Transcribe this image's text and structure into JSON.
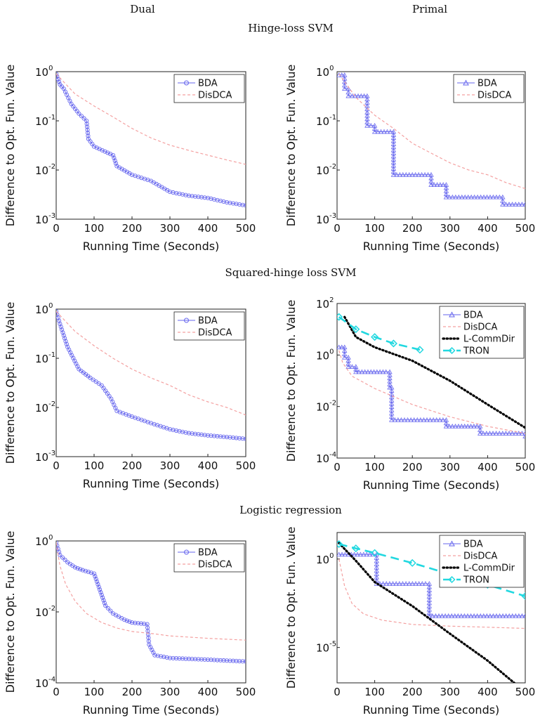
{
  "column_titles": [
    "Dual",
    "Primal"
  ],
  "row_titles": [
    "Hinge-loss SVM",
    "Squared-hinge loss SVM",
    "Logistic regression"
  ],
  "colors": {
    "BDA": "#6666ee",
    "DisDCA": "#f4a0a0",
    "L-CommDir": "#000000",
    "TRON": "#22d8e0"
  },
  "chart_data": [
    {
      "type": "line",
      "row": "Hinge-loss SVM",
      "column": "Dual",
      "xlabel": "Running Time (Seconds)",
      "ylabel": "Difference to Opt. Fun. Value",
      "yscale": "log",
      "xlim": [
        0,
        500
      ],
      "ylim_exp": [
        -3,
        0
      ],
      "ytick_exp": [
        -3,
        -2,
        -1,
        0
      ],
      "xticks": [
        0,
        100,
        200,
        300,
        400,
        500
      ],
      "legend_position": "top-right",
      "series": [
        {
          "name": "BDA",
          "style": "line-circle",
          "x": [
            0,
            10,
            20,
            40,
            60,
            80,
            85,
            100,
            150,
            160,
            200,
            250,
            300,
            350,
            400,
            450,
            500
          ],
          "y": [
            0.9,
            0.55,
            0.45,
            0.22,
            0.14,
            0.1,
            0.043,
            0.03,
            0.02,
            0.012,
            0.008,
            0.006,
            0.0036,
            0.003,
            0.0027,
            0.0022,
            0.0019
          ]
        },
        {
          "name": "DisDCA",
          "style": "dashed",
          "x": [
            0,
            50,
            100,
            150,
            200,
            250,
            300,
            350,
            400,
            450,
            500
          ],
          "y": [
            0.9,
            0.35,
            0.2,
            0.12,
            0.07,
            0.045,
            0.032,
            0.025,
            0.02,
            0.016,
            0.013
          ]
        }
      ]
    },
    {
      "type": "line",
      "row": "Hinge-loss SVM",
      "column": "Primal",
      "xlabel": "Running Time (Seconds)",
      "ylabel": "Difference to Opt. Fun. Value",
      "yscale": "log",
      "xlim": [
        0,
        500
      ],
      "ylim_exp": [
        -3,
        0
      ],
      "ytick_exp": [
        -3,
        -2,
        -1,
        0
      ],
      "xticks": [
        0,
        100,
        200,
        300,
        400,
        500
      ],
      "legend_position": "top-right",
      "series": [
        {
          "name": "BDA",
          "style": "step-triangle",
          "x": [
            5,
            20,
            30,
            40,
            80,
            100,
            150,
            250,
            290,
            440,
            500
          ],
          "y": [
            0.85,
            0.45,
            0.32,
            0.32,
            0.08,
            0.06,
            0.008,
            0.005,
            0.0028,
            0.002,
            0.002
          ]
        },
        {
          "name": "DisDCA",
          "style": "dashed",
          "x": [
            5,
            50,
            100,
            150,
            200,
            250,
            300,
            350,
            400,
            450,
            500
          ],
          "y": [
            0.9,
            0.3,
            0.13,
            0.07,
            0.035,
            0.022,
            0.014,
            0.01,
            0.008,
            0.0055,
            0.0042
          ]
        }
      ]
    },
    {
      "type": "line",
      "row": "Squared-hinge loss SVM",
      "column": "Dual",
      "xlabel": "Running Time (Seconds)",
      "ylabel": "Difference to Opt. Fun. Value",
      "yscale": "log",
      "xlim": [
        0,
        500
      ],
      "ylim_exp": [
        -3,
        0
      ],
      "ytick_exp": [
        -3,
        -2,
        -1,
        0
      ],
      "xticks": [
        0,
        100,
        200,
        300,
        400,
        500
      ],
      "legend_position": "top-right",
      "series": [
        {
          "name": "BDA",
          "style": "line-circle",
          "x": [
            0,
            10,
            30,
            60,
            90,
            120,
            145,
            160,
            200,
            250,
            300,
            350,
            400,
            450,
            500
          ],
          "y": [
            0.9,
            0.5,
            0.17,
            0.06,
            0.04,
            0.028,
            0.015,
            0.0085,
            0.0065,
            0.0048,
            0.0036,
            0.003,
            0.0027,
            0.0025,
            0.0023
          ]
        },
        {
          "name": "DisDCA",
          "style": "dashed",
          "x": [
            0,
            50,
            100,
            150,
            200,
            250,
            300,
            350,
            400,
            450,
            500
          ],
          "y": [
            0.9,
            0.35,
            0.18,
            0.1,
            0.06,
            0.04,
            0.028,
            0.018,
            0.013,
            0.01,
            0.007
          ]
        }
      ]
    },
    {
      "type": "line",
      "row": "Squared-hinge loss SVM",
      "column": "Primal",
      "xlabel": "Running Time (Seconds)",
      "ylabel": "Difference to Opt. Fun. Value",
      "yscale": "log",
      "xlim": [
        0,
        500
      ],
      "ylim_exp": [
        -4,
        2
      ],
      "ytick_exp": [
        -4,
        -2,
        0,
        2
      ],
      "xticks": [
        0,
        100,
        200,
        300,
        400,
        500
      ],
      "legend_position": "top-right",
      "series": [
        {
          "name": "BDA",
          "style": "step-triangle",
          "x": [
            5,
            20,
            30,
            50,
            130,
            140,
            145,
            290,
            380,
            500
          ],
          "y": [
            2.0,
            0.8,
            0.35,
            0.22,
            0.22,
            0.055,
            0.003,
            0.0017,
            0.0009,
            0.0007
          ]
        },
        {
          "name": "DisDCA",
          "style": "dashed",
          "x": [
            5,
            15,
            40,
            100,
            200,
            300,
            400,
            500
          ],
          "y": [
            1.5,
            0.5,
            0.15,
            0.05,
            0.012,
            0.004,
            0.0017,
            0.0009
          ]
        },
        {
          "name": "L-CommDir",
          "style": "dotted",
          "x": [
            20,
            50,
            100,
            200,
            300,
            400,
            500
          ],
          "y": [
            30,
            5,
            2,
            0.6,
            0.1,
            0.012,
            0.0015
          ]
        },
        {
          "name": "TRON",
          "style": "dash-diamond",
          "x": [
            5,
            50,
            100,
            150,
            220
          ],
          "y": [
            30,
            10,
            5,
            2.8,
            1.6
          ]
        }
      ]
    },
    {
      "type": "line",
      "row": "Logistic regression",
      "column": "Dual",
      "xlabel": "Running Time (Seconds)",
      "ylabel": "Difference to Opt. Fun. Value",
      "yscale": "log",
      "xlim": [
        0,
        500
      ],
      "ylim_exp": [
        -4,
        0
      ],
      "ytick_exp": [
        -4,
        -2,
        0
      ],
      "xticks": [
        0,
        100,
        200,
        300,
        400,
        500
      ],
      "legend_position": "top-right",
      "series": [
        {
          "name": "BDA",
          "style": "line-circle",
          "x": [
            0,
            10,
            30,
            50,
            70,
            100,
            110,
            120,
            130,
            150,
            180,
            200,
            240,
            245,
            260,
            300,
            400,
            500
          ],
          "y": [
            0.9,
            0.4,
            0.25,
            0.18,
            0.15,
            0.12,
            0.06,
            0.03,
            0.015,
            0.009,
            0.006,
            0.005,
            0.0045,
            0.0012,
            0.0006,
            0.0005,
            0.00045,
            0.0004
          ]
        },
        {
          "name": "DisDCA",
          "style": "dashed",
          "x": [
            0,
            10,
            25,
            50,
            80,
            120,
            160,
            200,
            260,
            300,
            400,
            500
          ],
          "y": [
            0.9,
            0.2,
            0.06,
            0.02,
            0.009,
            0.005,
            0.0035,
            0.0028,
            0.0024,
            0.0021,
            0.0018,
            0.0016
          ]
        }
      ]
    },
    {
      "type": "line",
      "row": "Logistic regression",
      "column": "Primal",
      "xlabel": "Running Time (Seconds)",
      "ylabel": "Difference to Opt. Fun. Value",
      "yscale": "log",
      "xlim": [
        0,
        500
      ],
      "ylim_exp": [
        -7,
        1.5
      ],
      "ytick_exp": [
        -5,
        0
      ],
      "xticks": [
        0,
        100,
        200,
        300,
        400,
        500
      ],
      "legend_position": "top-right",
      "series": [
        {
          "name": "BDA",
          "style": "step-triangle",
          "x": [
            5,
            95,
            105,
            235,
            245,
            500
          ],
          "y": [
            1.8,
            1.8,
            0.04,
            0.04,
            0.0006,
            0.0006
          ]
        },
        {
          "name": "DisDCA",
          "style": "dashed",
          "x": [
            5,
            20,
            40,
            70,
            120,
            200,
            300,
            400,
            500
          ],
          "y": [
            1.0,
            0.03,
            0.003,
            0.0008,
            0.00035,
            0.0002,
            0.00016,
            0.00014,
            0.00012
          ]
        },
        {
          "name": "L-CommDir",
          "style": "dotted",
          "x": [
            5,
            50,
            100,
            200,
            300,
            400,
            500
          ],
          "y": [
            8,
            0.8,
            0.05,
            0.0022,
            6e-05,
            1.8e-06,
            3e-08
          ]
        },
        {
          "name": "TRON",
          "style": "dash-diamond",
          "x": [
            5,
            50,
            100,
            200,
            300,
            400,
            500
          ],
          "y": [
            7,
            4,
            2.2,
            0.6,
            0.14,
            0.035,
            0.008
          ]
        }
      ]
    }
  ]
}
